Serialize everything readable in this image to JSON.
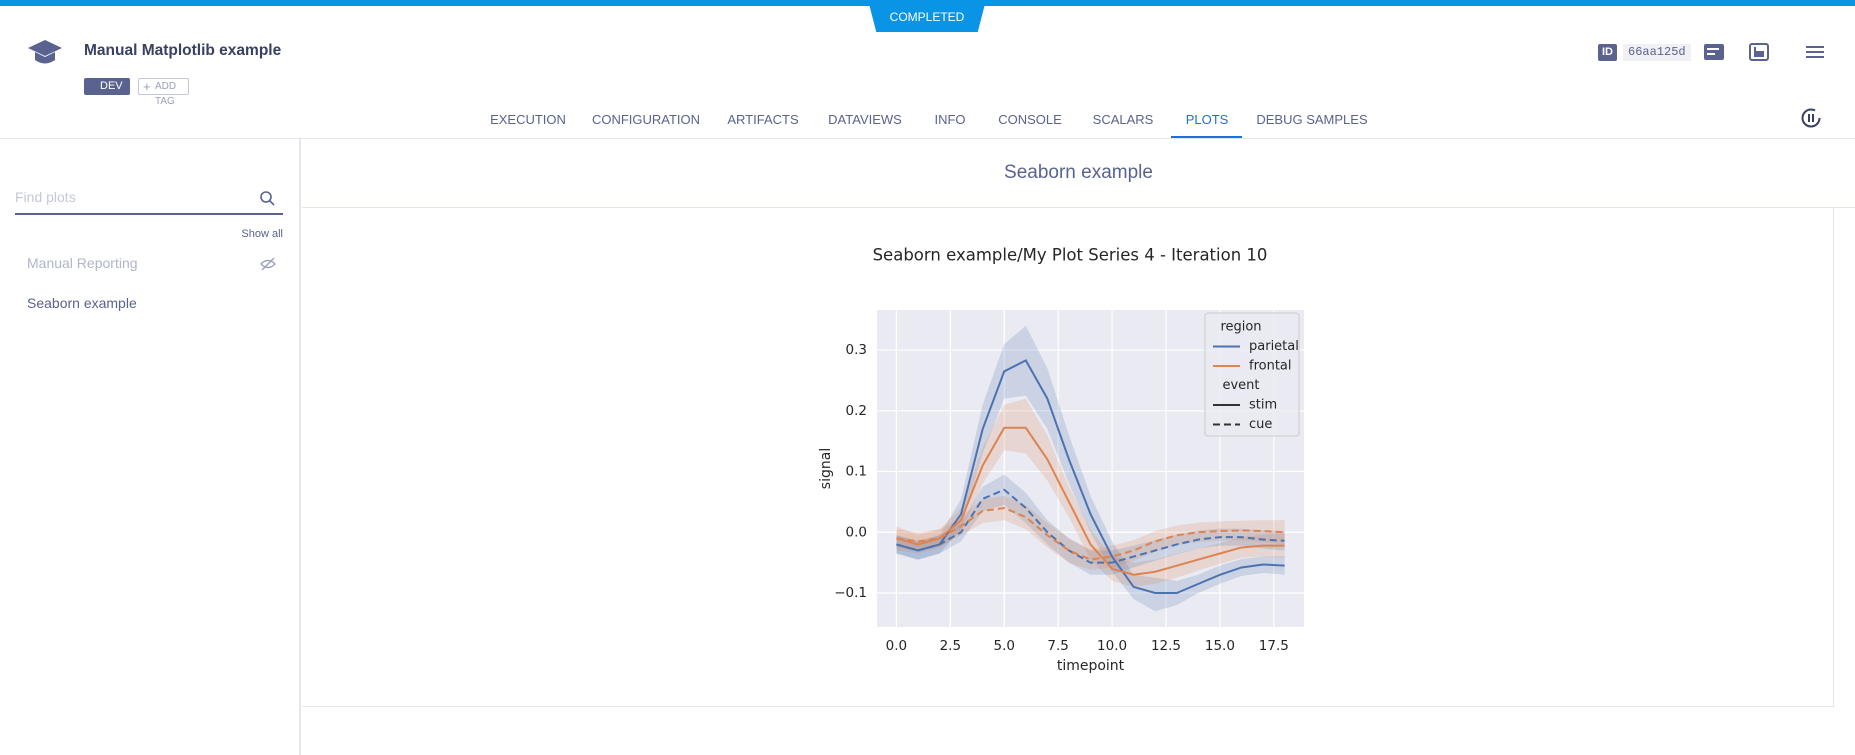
{
  "status": "COMPLETED",
  "header": {
    "title": "Manual Matplotlib example",
    "tags": [
      "DEV"
    ],
    "add_tag": "ADD TAG",
    "id_label": "ID",
    "id": "66aa125d"
  },
  "tabs": [
    {
      "label": "EXECUTION"
    },
    {
      "label": "CONFIGURATION"
    },
    {
      "label": "ARTIFACTS"
    },
    {
      "label": "DATAVIEWS"
    },
    {
      "label": "INFO"
    },
    {
      "label": "CONSOLE"
    },
    {
      "label": "SCALARS"
    },
    {
      "label": "PLOTS",
      "active": true
    },
    {
      "label": "DEBUG SAMPLES"
    }
  ],
  "sidebar": {
    "search_placeholder": "Find plots",
    "show_all": "Show all",
    "items": [
      {
        "label": "Manual Reporting",
        "hidden": true
      },
      {
        "label": "Seaborn example",
        "hidden": false
      }
    ]
  },
  "section_title": "Seaborn example",
  "chart_data": {
    "type": "line",
    "title": "Seaborn example/My Plot Series 4 - Iteration 10",
    "x_label": "timepoint",
    "y_label": "signal",
    "x": [
      0,
      1,
      2,
      3,
      4,
      5,
      6,
      7,
      8,
      9,
      10,
      11,
      12,
      13,
      14,
      15,
      16,
      17,
      18
    ],
    "series": [
      {
        "color": "#4c72b0",
        "dash": "solid",
        "values": [
          -0.02,
          -0.03,
          -0.02,
          0.03,
          0.17,
          0.265,
          0.283,
          0.22,
          0.12,
          0.03,
          -0.04,
          -0.09,
          -0.1,
          -0.1,
          -0.085,
          -0.07,
          -0.058,
          -0.053,
          -0.055
        ],
        "lower": [
          -0.035,
          -0.045,
          -0.035,
          0.005,
          0.13,
          0.22,
          0.225,
          0.17,
          0.08,
          0.0,
          -0.065,
          -0.11,
          -0.13,
          -0.12,
          -0.1,
          -0.085,
          -0.072,
          -0.067,
          -0.07
        ],
        "upper": [
          -0.005,
          -0.015,
          -0.005,
          0.055,
          0.21,
          0.31,
          0.34,
          0.27,
          0.16,
          0.06,
          -0.015,
          -0.07,
          -0.075,
          -0.08,
          -0.07,
          -0.055,
          -0.044,
          -0.04,
          -0.04
        ]
      },
      {
        "color": "#dd8452",
        "dash": "solid",
        "values": [
          -0.01,
          -0.02,
          -0.01,
          0.02,
          0.11,
          0.172,
          0.172,
          0.12,
          0.05,
          -0.02,
          -0.06,
          -0.07,
          -0.065,
          -0.055,
          -0.045,
          -0.035,
          -0.025,
          -0.022,
          -0.022
        ],
        "lower": [
          -0.03,
          -0.035,
          -0.025,
          0.0,
          0.08,
          0.135,
          0.13,
          0.085,
          0.025,
          -0.045,
          -0.08,
          -0.09,
          -0.085,
          -0.075,
          -0.063,
          -0.052,
          -0.042,
          -0.04,
          -0.042
        ],
        "upper": [
          0.01,
          -0.005,
          0.005,
          0.04,
          0.14,
          0.21,
          0.22,
          0.16,
          0.075,
          0.005,
          -0.04,
          -0.05,
          -0.045,
          -0.035,
          -0.027,
          -0.018,
          -0.008,
          -0.004,
          -0.002
        ]
      },
      {
        "color": "#4c72b0",
        "dash": "dashed",
        "values": [
          -0.02,
          -0.03,
          -0.02,
          0.0,
          0.055,
          0.07,
          0.04,
          0.0,
          -0.03,
          -0.05,
          -0.05,
          -0.04,
          -0.03,
          -0.02,
          -0.012,
          -0.008,
          -0.008,
          -0.012,
          -0.014
        ],
        "lower": [
          -0.035,
          -0.045,
          -0.035,
          -0.015,
          0.035,
          0.045,
          0.015,
          -0.02,
          -0.05,
          -0.07,
          -0.07,
          -0.058,
          -0.047,
          -0.036,
          -0.027,
          -0.022,
          -0.022,
          -0.027,
          -0.03
        ],
        "upper": [
          -0.005,
          -0.015,
          -0.005,
          0.015,
          0.075,
          0.095,
          0.065,
          0.02,
          -0.01,
          -0.03,
          -0.03,
          -0.022,
          -0.013,
          -0.004,
          0.003,
          0.006,
          0.006,
          0.003,
          0.002
        ]
      },
      {
        "color": "#dd8452",
        "dash": "dashed",
        "values": [
          -0.01,
          -0.015,
          -0.01,
          0.01,
          0.035,
          0.04,
          0.025,
          -0.005,
          -0.03,
          -0.045,
          -0.04,
          -0.03,
          -0.015,
          -0.005,
          0.0,
          0.002,
          0.003,
          0.002,
          0.0
        ],
        "lower": [
          -0.025,
          -0.03,
          -0.025,
          -0.005,
          0.015,
          0.02,
          0.005,
          -0.025,
          -0.05,
          -0.062,
          -0.058,
          -0.047,
          -0.032,
          -0.021,
          -0.016,
          -0.014,
          -0.013,
          -0.016,
          -0.02
        ],
        "upper": [
          0.005,
          0.0,
          0.005,
          0.025,
          0.055,
          0.06,
          0.045,
          0.015,
          -0.01,
          -0.028,
          -0.022,
          -0.013,
          0.002,
          0.011,
          0.016,
          0.018,
          0.019,
          0.02,
          0.02
        ]
      }
    ],
    "legend": {
      "position": "upper right",
      "groups": [
        {
          "title": "region",
          "entries": [
            {
              "label": "parietal",
              "color": "#4c72b0",
              "dash": "solid"
            },
            {
              "label": "frontal",
              "color": "#dd8452",
              "dash": "solid"
            }
          ]
        },
        {
          "title": "event",
          "entries": [
            {
              "label": "stim",
              "color": "#333333",
              "dash": "solid"
            },
            {
              "label": "cue",
              "color": "#333333",
              "dash": "dashed"
            }
          ]
        }
      ]
    },
    "xlim": [
      -0.9,
      18.9
    ],
    "ylim": [
      -0.156,
      0.366
    ],
    "xticks": [
      {
        "value": 0,
        "label": "0.0"
      },
      2.5,
      {
        "value": 5,
        "label": "5.0"
      },
      7.5,
      {
        "value": 10,
        "label": "10.0"
      },
      12.5,
      {
        "value": 15,
        "label": "15.0"
      },
      17.5
    ],
    "yticks": [
      {
        "value": -0.1,
        "label": "−0.1"
      },
      {
        "value": 0,
        "label": "0.0"
      },
      0.1,
      0.2,
      0.3
    ],
    "grid": true
  }
}
